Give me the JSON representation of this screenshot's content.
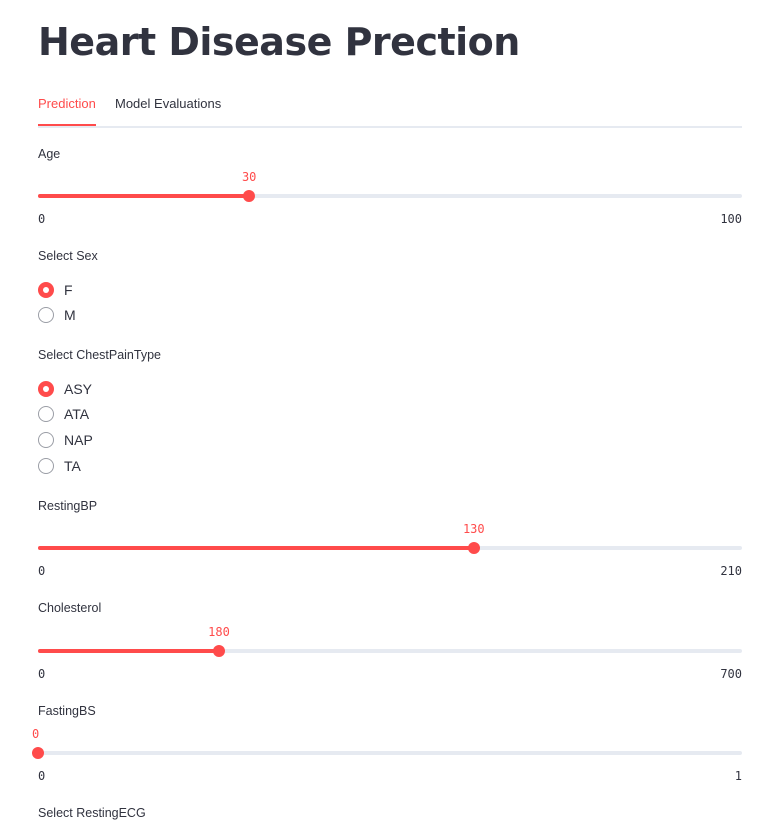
{
  "title": "Heart Disease Prection",
  "tabs": [
    {
      "label": "Prediction",
      "active": true
    },
    {
      "label": "Model Evaluations",
      "active": false
    }
  ],
  "age": {
    "label": "Age",
    "value": 30,
    "min": 0,
    "max": 100
  },
  "sex": {
    "label": "Select Sex",
    "options": [
      "F",
      "M"
    ],
    "selected": "F"
  },
  "chest_pain": {
    "label": "Select ChestPainType",
    "options": [
      "ASY",
      "ATA",
      "NAP",
      "TA"
    ],
    "selected": "ASY"
  },
  "resting_bp": {
    "label": "RestingBP",
    "value": 130,
    "min": 0,
    "max": 210
  },
  "cholesterol": {
    "label": "Cholesterol",
    "value": 180,
    "min": 0,
    "max": 700
  },
  "fasting_bs": {
    "label": "FastingBS",
    "value": 0,
    "min": 0,
    "max": 1
  },
  "resting_ecg": {
    "label": "Select RestingECG"
  },
  "colors": {
    "accent": "#ff4b4b",
    "text": "#31333f",
    "track": "#e6eaf1"
  }
}
